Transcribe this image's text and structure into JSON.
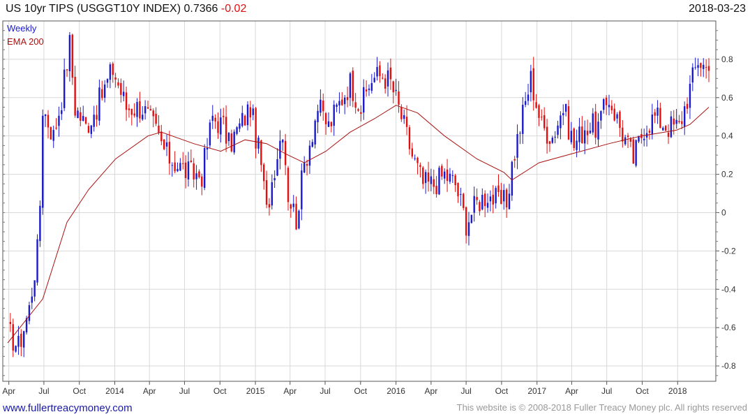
{
  "header": {
    "title": "US 10yr TIPS (USGGT10Y INDEX)",
    "last_value": "0.7366",
    "change": "-0.02",
    "date": "2018-03-23"
  },
  "footer": {
    "website": "www.fullertreacymoney.com",
    "copyright": "This website is © 2008-2018 Fuller Treacy Money plc. All rights reserved"
  },
  "colors": {
    "up": "#1a1acc",
    "down": "#e01010",
    "ema": "#aa1111",
    "change": "#e01010",
    "website": "#1a1aaa",
    "grid": "#d8d8d8"
  },
  "chart_data": {
    "type": "line",
    "subtype": "candlestick",
    "frequency": "weekly",
    "legend": [
      "Weekly",
      "EMA 200"
    ],
    "legend_placement": "top-left",
    "x_range": [
      "2013-03-29",
      "2018-03-23"
    ],
    "ylim": [
      -0.88,
      1.0
    ],
    "y_ticks": [
      -0.8,
      -0.6,
      -0.4,
      -0.2,
      0,
      0.2,
      0.4,
      0.6,
      0.8
    ],
    "x_ticks": [
      {
        "label": "Apr",
        "date": "2013-04-01"
      },
      {
        "label": "Jul",
        "date": "2013-07-01"
      },
      {
        "label": "Oct",
        "date": "2013-10-01"
      },
      {
        "label": "2014",
        "date": "2014-01-01"
      },
      {
        "label": "Apr",
        "date": "2014-04-01"
      },
      {
        "label": "Jul",
        "date": "2014-07-01"
      },
      {
        "label": "Oct",
        "date": "2014-10-01"
      },
      {
        "label": "2015",
        "date": "2015-01-01"
      },
      {
        "label": "Apr",
        "date": "2015-04-01"
      },
      {
        "label": "Jul",
        "date": "2015-07-01"
      },
      {
        "label": "Oct",
        "date": "2015-10-01"
      },
      {
        "label": "2016",
        "date": "2016-01-01"
      },
      {
        "label": "Apr",
        "date": "2016-04-01"
      },
      {
        "label": "Jul",
        "date": "2016-07-01"
      },
      {
        "label": "Oct",
        "date": "2016-10-01"
      },
      {
        "label": "2017",
        "date": "2017-01-01"
      },
      {
        "label": "Apr",
        "date": "2017-04-01"
      },
      {
        "label": "Jul",
        "date": "2017-07-01"
      },
      {
        "label": "Oct",
        "date": "2017-10-01"
      },
      {
        "label": "2018",
        "date": "2018-01-01"
      }
    ],
    "grid": true,
    "price_path": [
      {
        "date": "2013-03-29",
        "value": -0.62
      },
      {
        "date": "2013-04-26",
        "value": -0.7
      },
      {
        "date": "2013-05-24",
        "value": -0.5
      },
      {
        "date": "2013-06-14",
        "value": -0.2
      },
      {
        "date": "2013-06-21",
        "value": 0.05
      },
      {
        "date": "2013-06-28",
        "value": 0.55
      },
      {
        "date": "2013-07-26",
        "value": 0.4
      },
      {
        "date": "2013-08-16",
        "value": 0.6
      },
      {
        "date": "2013-09-06",
        "value": 0.88
      },
      {
        "date": "2013-09-20",
        "value": 0.55
      },
      {
        "date": "2013-10-18",
        "value": 0.45
      },
      {
        "date": "2013-11-15",
        "value": 0.55
      },
      {
        "date": "2013-12-27",
        "value": 0.75
      },
      {
        "date": "2014-01-31",
        "value": 0.55
      },
      {
        "date": "2014-03-14",
        "value": 0.55
      },
      {
        "date": "2014-04-11",
        "value": 0.45
      },
      {
        "date": "2014-05-16",
        "value": 0.3
      },
      {
        "date": "2014-06-13",
        "value": 0.25
      },
      {
        "date": "2014-07-18",
        "value": 0.2
      },
      {
        "date": "2014-08-15",
        "value": 0.2
      },
      {
        "date": "2014-09-12",
        "value": 0.5
      },
      {
        "date": "2014-10-10",
        "value": 0.45
      },
      {
        "date": "2014-10-24",
        "value": 0.35
      },
      {
        "date": "2014-11-21",
        "value": 0.45
      },
      {
        "date": "2014-12-19",
        "value": 0.55
      },
      {
        "date": "2015-01-16",
        "value": 0.25
      },
      {
        "date": "2015-01-30",
        "value": 0.0
      },
      {
        "date": "2015-02-20",
        "value": 0.25
      },
      {
        "date": "2015-03-13",
        "value": 0.45
      },
      {
        "date": "2015-03-27",
        "value": 0.1
      },
      {
        "date": "2015-04-17",
        "value": -0.03
      },
      {
        "date": "2015-05-08",
        "value": 0.25
      },
      {
        "date": "2015-06-12",
        "value": 0.55
      },
      {
        "date": "2015-07-10",
        "value": 0.45
      },
      {
        "date": "2015-08-14",
        "value": 0.6
      },
      {
        "date": "2015-09-04",
        "value": 0.68
      },
      {
        "date": "2015-10-02",
        "value": 0.55
      },
      {
        "date": "2015-10-30",
        "value": 0.7
      },
      {
        "date": "2015-11-27",
        "value": 0.72
      },
      {
        "date": "2015-12-18",
        "value": 0.68
      },
      {
        "date": "2016-01-15",
        "value": 0.5
      },
      {
        "date": "2016-02-12",
        "value": 0.3
      },
      {
        "date": "2016-03-11",
        "value": 0.15
      },
      {
        "date": "2016-04-08",
        "value": 0.15
      },
      {
        "date": "2016-05-06",
        "value": 0.2
      },
      {
        "date": "2016-06-03",
        "value": 0.15
      },
      {
        "date": "2016-07-01",
        "value": -0.05
      },
      {
        "date": "2016-07-29",
        "value": 0.05
      },
      {
        "date": "2016-08-26",
        "value": 0.1
      },
      {
        "date": "2016-09-23",
        "value": 0.05
      },
      {
        "date": "2016-10-14",
        "value": 0.05
      },
      {
        "date": "2016-10-28",
        "value": 0.25
      },
      {
        "date": "2016-11-18",
        "value": 0.45
      },
      {
        "date": "2016-12-16",
        "value": 0.7
      },
      {
        "date": "2017-01-13",
        "value": 0.45
      },
      {
        "date": "2017-02-10",
        "value": 0.4
      },
      {
        "date": "2017-03-10",
        "value": 0.55
      },
      {
        "date": "2017-04-07",
        "value": 0.35
      },
      {
        "date": "2017-05-05",
        "value": 0.45
      },
      {
        "date": "2017-06-09",
        "value": 0.45
      },
      {
        "date": "2017-07-07",
        "value": 0.6
      },
      {
        "date": "2017-08-04",
        "value": 0.45
      },
      {
        "date": "2017-09-08",
        "value": 0.28
      },
      {
        "date": "2017-10-06",
        "value": 0.45
      },
      {
        "date": "2017-11-03",
        "value": 0.5
      },
      {
        "date": "2017-12-08",
        "value": 0.45
      },
      {
        "date": "2018-01-05",
        "value": 0.45
      },
      {
        "date": "2018-02-02",
        "value": 0.65
      },
      {
        "date": "2018-02-23",
        "value": 0.8
      },
      {
        "date": "2018-03-23",
        "value": 0.74
      }
    ],
    "ema_200": [
      {
        "date": "2013-03-29",
        "value": -0.68
      },
      {
        "date": "2013-06-28",
        "value": -0.45
      },
      {
        "date": "2013-08-30",
        "value": -0.05
      },
      {
        "date": "2013-10-25",
        "value": 0.12
      },
      {
        "date": "2014-01-03",
        "value": 0.28
      },
      {
        "date": "2014-03-28",
        "value": 0.4
      },
      {
        "date": "2014-05-02",
        "value": 0.42
      },
      {
        "date": "2014-07-25",
        "value": 0.36
      },
      {
        "date": "2014-10-03",
        "value": 0.32
      },
      {
        "date": "2014-12-05",
        "value": 0.38
      },
      {
        "date": "2015-01-30",
        "value": 0.36
      },
      {
        "date": "2015-03-27",
        "value": 0.3
      },
      {
        "date": "2015-05-08",
        "value": 0.26
      },
      {
        "date": "2015-07-03",
        "value": 0.32
      },
      {
        "date": "2015-09-04",
        "value": 0.42
      },
      {
        "date": "2015-11-06",
        "value": 0.49
      },
      {
        "date": "2016-01-01",
        "value": 0.56
      },
      {
        "date": "2016-02-26",
        "value": 0.52
      },
      {
        "date": "2016-05-06",
        "value": 0.4
      },
      {
        "date": "2016-07-29",
        "value": 0.28
      },
      {
        "date": "2016-10-07",
        "value": 0.21
      },
      {
        "date": "2016-10-28",
        "value": 0.17
      },
      {
        "date": "2017-01-06",
        "value": 0.26
      },
      {
        "date": "2017-04-07",
        "value": 0.31
      },
      {
        "date": "2017-07-07",
        "value": 0.36
      },
      {
        "date": "2017-09-29",
        "value": 0.4
      },
      {
        "date": "2017-12-29",
        "value": 0.43
      },
      {
        "date": "2018-02-02",
        "value": 0.46
      },
      {
        "date": "2018-03-23",
        "value": 0.55
      }
    ]
  }
}
